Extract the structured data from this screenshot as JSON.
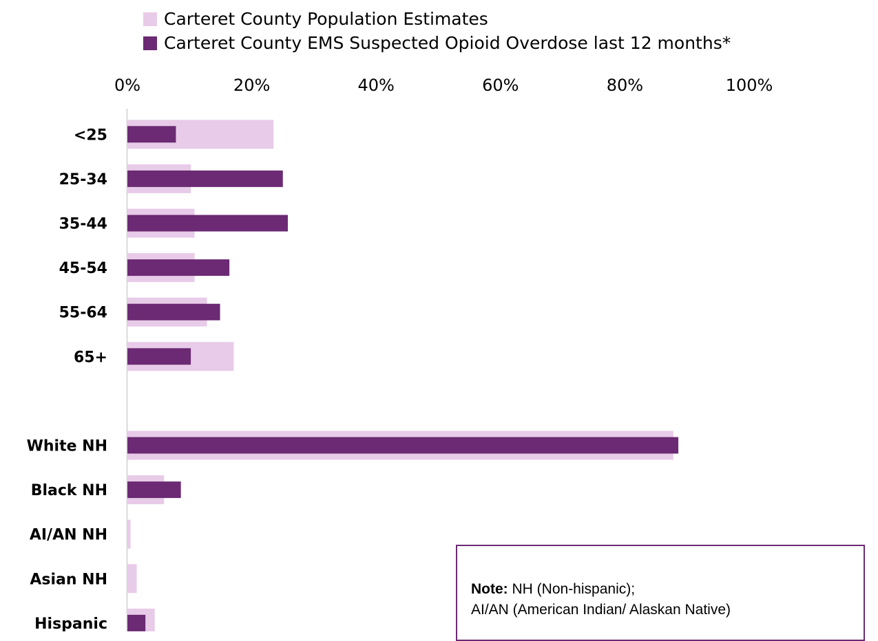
{
  "chart_data": {
    "type": "bar",
    "orientation": "horizontal",
    "categories": [
      "<25",
      "25-34",
      "35-44",
      "45-54",
      "55-64",
      "65+",
      "",
      "White NH",
      "Black NH",
      "AI/AN NH",
      "Asian NH",
      "Hispanic"
    ],
    "series": [
      {
        "name": "Carteret County Population Estimates",
        "color": "#e8cbe8",
        "values": [
          23.5,
          10.2,
          10.8,
          10.8,
          12.8,
          17.1,
          null,
          87.8,
          5.9,
          0.5,
          1.5,
          4.4
        ]
      },
      {
        "name": "Carteret County EMS Suspected Opioid Overdose last 12 months*",
        "color": "#6b2a73",
        "values": [
          7.8,
          25.0,
          25.8,
          16.4,
          14.9,
          10.2,
          null,
          88.6,
          8.6,
          0.0,
          0.0,
          2.9
        ]
      }
    ],
    "x_ticks": [
      "0%",
      "20%",
      "40%",
      "60%",
      "80%",
      "100%"
    ],
    "xlim": [
      0,
      100
    ],
    "axis_position": "top",
    "grid": false,
    "legend_position": "top",
    "title": "",
    "xlabel": "",
    "ylabel": ""
  },
  "note": {
    "bold_label": "Note:",
    "line1_rest": " NH (Non-hispanic);",
    "line2": "AI/AN (American Indian/ Alaskan Native)"
  }
}
